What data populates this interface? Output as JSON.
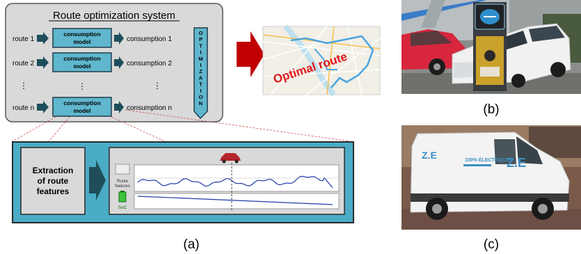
{
  "system": {
    "title": "Route optimization system",
    "routes": [
      "route 1",
      "route 2",
      "route n"
    ],
    "model_label_line1": "consumption",
    "model_label_line2": "model",
    "outputs": [
      "consumption 1",
      "consumption 2",
      "consumption n"
    ],
    "optimization_letters": [
      "O",
      "P",
      "T",
      "I",
      "M",
      "I",
      "Z",
      "A",
      "T",
      "I",
      "O",
      "N"
    ]
  },
  "map": {
    "label": "Optimal route"
  },
  "feature_panel": {
    "extraction_line1": "Extraction",
    "extraction_line2": "of route",
    "extraction_line3": "features",
    "route_features_line1": "Route",
    "route_features_line2": "features",
    "soc_label": "SoC"
  },
  "captions": {
    "a": "(a)",
    "b": "(b)",
    "c": "(c)"
  },
  "photos": {
    "c": {
      "van_text_line1": "100% ÉLECTRIQUE",
      "van_badge": "Z.E"
    }
  },
  "colors": {
    "panel_fill": "#d9d9d9",
    "panel_stroke": "#555555",
    "model_fill": "#5fb6cd",
    "arrow_dark": "#1f4e5a",
    "red_arrow": "#c00000",
    "map_route": "#4aa3df",
    "feature_bg": "#4bacc6",
    "speed_line": "#1f3aa8"
  },
  "icons": {
    "arrow": "right-arrow-icon",
    "battery": "battery-icon",
    "car": "car-icon"
  }
}
